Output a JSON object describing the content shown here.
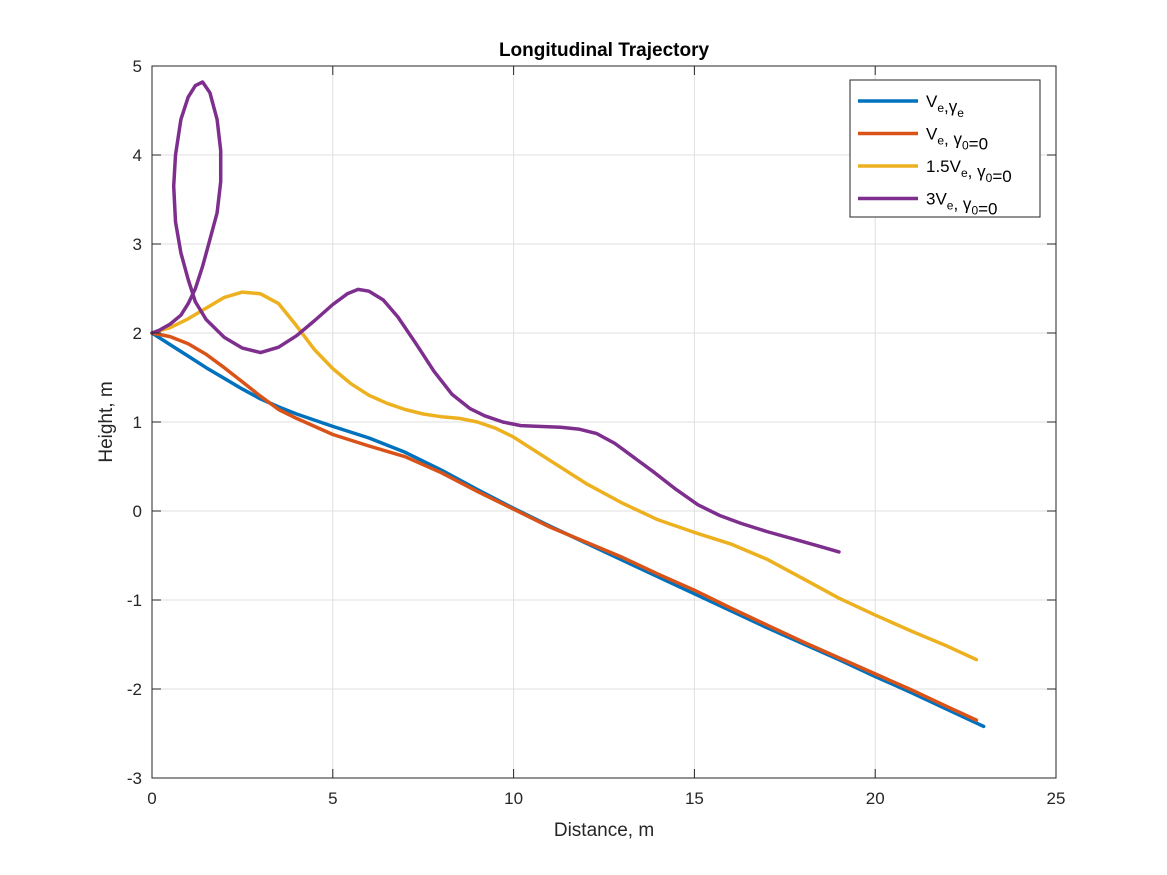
{
  "chart_data": {
    "type": "line",
    "title": "Longitudinal Trajectory",
    "xlabel": "Distance, m",
    "ylabel": "Height, m",
    "xlim": [
      0,
      25
    ],
    "ylim": [
      -3,
      5
    ],
    "xticks": [
      0,
      5,
      10,
      15,
      20,
      25
    ],
    "yticks": [
      -3,
      -2,
      -1,
      0,
      1,
      2,
      3,
      4,
      5
    ],
    "xtick_labels": [
      "0",
      "5",
      "10",
      "15",
      "20",
      "25"
    ],
    "ytick_labels": [
      "-3",
      "-2",
      "-1",
      "0",
      "1",
      "2",
      "3",
      "4",
      "5"
    ],
    "grid": true,
    "legend_position": "top-right",
    "series": [
      {
        "name": "Ve,γe",
        "legend": [
          {
            "t": "V"
          },
          {
            "t": "e",
            "sub": true
          },
          {
            "t": ","
          },
          {
            "t": "γ"
          },
          {
            "t": "e",
            "sub": true
          }
        ],
        "color": "#0072BD",
        "x": [
          0,
          0.5,
          1,
          1.5,
          2,
          2.5,
          3,
          3.5,
          4,
          5,
          6,
          7,
          8,
          9,
          10,
          11,
          12,
          13,
          14,
          15,
          16,
          17,
          18,
          19,
          20,
          21,
          22,
          23
        ],
        "y": [
          2.0,
          1.87,
          1.74,
          1.61,
          1.49,
          1.37,
          1.26,
          1.17,
          1.09,
          0.95,
          0.82,
          0.66,
          0.46,
          0.24,
          0.03,
          -0.17,
          -0.36,
          -0.55,
          -0.74,
          -0.93,
          -1.12,
          -1.31,
          -1.49,
          -1.67,
          -1.86,
          -2.04,
          -2.23,
          -2.42
        ]
      },
      {
        "name": "Ve, γ0=0",
        "legend": [
          {
            "t": "V"
          },
          {
            "t": "e",
            "sub": true
          },
          {
            "t": ", γ"
          },
          {
            "t": "0",
            "sub": true
          },
          {
            "t": "=0"
          }
        ],
        "color": "#D95319",
        "x": [
          0,
          0.5,
          1,
          1.5,
          2,
          2.5,
          3,
          3.5,
          4,
          5,
          6,
          7,
          8,
          9,
          10,
          11,
          12,
          13,
          14,
          15,
          16,
          17,
          18,
          19,
          20,
          21,
          22,
          22.8
        ],
        "y": [
          2.0,
          1.96,
          1.88,
          1.76,
          1.61,
          1.45,
          1.29,
          1.14,
          1.04,
          0.86,
          0.73,
          0.61,
          0.43,
          0.22,
          0.02,
          -0.18,
          -0.35,
          -0.52,
          -0.71,
          -0.89,
          -1.09,
          -1.28,
          -1.47,
          -1.65,
          -1.83,
          -2.01,
          -2.2,
          -2.35
        ]
      },
      {
        "name": "1.5Ve, γ0=0",
        "legend": [
          {
            "t": "1.5V"
          },
          {
            "t": "e",
            "sub": true
          },
          {
            "t": ", γ"
          },
          {
            "t": "0",
            "sub": true
          },
          {
            "t": "=0"
          }
        ],
        "color": "#EDB120",
        "x": [
          0,
          0.5,
          1,
          1.5,
          2,
          2.5,
          3,
          3.5,
          4,
          4.5,
          5,
          5.5,
          6,
          6.5,
          7,
          7.5,
          8,
          8.5,
          9,
          9.5,
          10,
          11,
          12,
          13,
          14,
          15,
          16,
          17,
          18,
          19,
          20,
          21,
          22,
          22.8
        ],
        "y": [
          2.0,
          2.06,
          2.16,
          2.28,
          2.4,
          2.46,
          2.44,
          2.33,
          2.08,
          1.81,
          1.6,
          1.43,
          1.3,
          1.21,
          1.14,
          1.09,
          1.06,
          1.04,
          1.0,
          0.93,
          0.83,
          0.57,
          0.31,
          0.09,
          -0.1,
          -0.24,
          -0.37,
          -0.54,
          -0.76,
          -0.98,
          -1.17,
          -1.35,
          -1.52,
          -1.67
        ]
      },
      {
        "name": "3Ve, γ0=0",
        "legend": [
          {
            "t": "3V"
          },
          {
            "t": "e",
            "sub": true
          },
          {
            "t": ", γ"
          },
          {
            "t": "0",
            "sub": true
          },
          {
            "t": "=0"
          }
        ],
        "color": "#7E2F8E",
        "x": [
          0,
          0.2,
          0.5,
          0.8,
          1.0,
          1.2,
          1.4,
          1.6,
          1.8,
          1.9,
          1.9,
          1.8,
          1.6,
          1.4,
          1.2,
          1.0,
          0.8,
          0.65,
          0.6,
          0.65,
          0.8,
          1.0,
          1.2,
          1.5,
          2.0,
          2.5,
          3.0,
          3.5,
          4.0,
          4.5,
          5.0,
          5.4,
          5.7,
          6.0,
          6.4,
          6.8,
          7.3,
          7.8,
          8.3,
          8.8,
          9.2,
          9.7,
          10.2,
          10.7,
          11.3,
          11.8,
          12.3,
          12.8,
          13.3,
          13.9,
          14.5,
          15.1,
          15.7,
          16.3,
          17.0,
          17.7,
          18.4,
          19.0
        ],
        "y": [
          2.0,
          2.03,
          2.1,
          2.2,
          2.33,
          2.5,
          2.75,
          3.05,
          3.35,
          3.7,
          4.05,
          4.4,
          4.7,
          4.82,
          4.78,
          4.65,
          4.4,
          4.0,
          3.65,
          3.25,
          2.9,
          2.6,
          2.35,
          2.15,
          1.95,
          1.83,
          1.78,
          1.84,
          1.97,
          2.14,
          2.32,
          2.44,
          2.49,
          2.47,
          2.37,
          2.18,
          1.88,
          1.57,
          1.31,
          1.15,
          1.07,
          1.0,
          0.96,
          0.95,
          0.94,
          0.92,
          0.87,
          0.76,
          0.61,
          0.43,
          0.24,
          0.07,
          -0.05,
          -0.14,
          -0.23,
          -0.31,
          -0.39,
          -0.46
        ]
      }
    ]
  }
}
